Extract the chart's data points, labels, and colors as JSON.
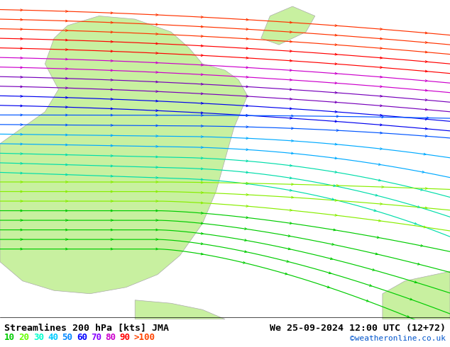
{
  "title_left": "Streamlines 200 hPa [kts] JMA",
  "title_right": "We 25-09-2024 12:00 UTC (12+72)",
  "credit": "©weatheronline.co.uk",
  "legend_values": [
    "10",
    "20",
    "30",
    "40",
    "50",
    "60",
    "70",
    "80",
    "90",
    ">100"
  ],
  "legend_colors": [
    "#00cc00",
    "#66ff00",
    "#00ffcc",
    "#00ccff",
    "#0088ff",
    "#0000ff",
    "#8800ff",
    "#cc00cc",
    "#ff0000",
    "#ff4400"
  ],
  "background_land": "#c8f0a0",
  "background_ocean": "#e8e8e8",
  "background_fig": "#ffffff",
  "streamline_colors_by_speed": {
    "10": "#00bb00",
    "20": "#88ee00",
    "30": "#00ddaa",
    "40": "#00bbff",
    "50": "#0088ff",
    "60": "#0000ff",
    "70": "#8800cc",
    "80": "#cc00aa",
    "90": "#ff0000",
    "100": "#ff2200"
  },
  "figsize": [
    6.34,
    4.9
  ],
  "dpi": 100
}
